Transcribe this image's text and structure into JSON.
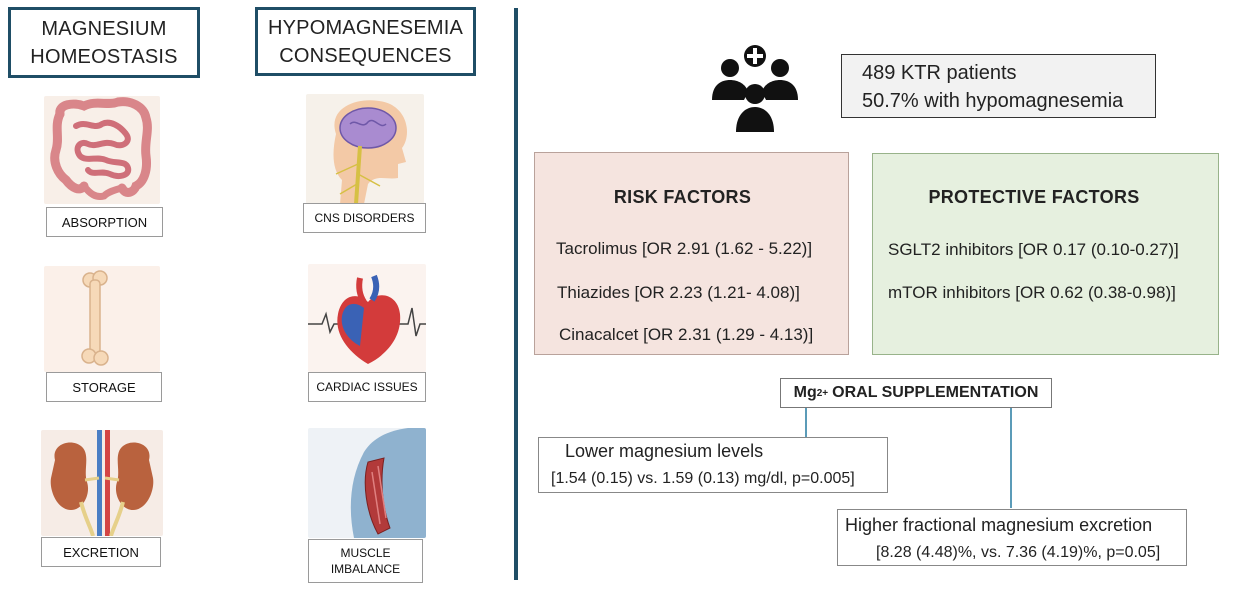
{
  "left": {
    "homeostasis_header": [
      "MAGNESIUM",
      "HOMEOSTASIS"
    ],
    "homeostasis_items": [
      {
        "label": "ABSORPTION",
        "icon": "intestine-icon"
      },
      {
        "label": "STORAGE",
        "icon": "bone-icon"
      },
      {
        "label": "EXCRETION",
        "icon": "kidney-icon"
      }
    ],
    "consequences_header": [
      "HYPOMAGNESEMIA",
      "CONSEQUENCES"
    ],
    "consequence_items": [
      {
        "label": "CNS DISORDERS",
        "icon": "brain-icon"
      },
      {
        "label": "CARDIAC ISSUES",
        "icon": "heart-icon"
      },
      {
        "label_lines": [
          "MUSCLE",
          "IMBALANCE"
        ],
        "icon": "muscle-icon"
      }
    ]
  },
  "right": {
    "patients_icon": "patient-group-icon",
    "patients": [
      "489 KTR patients",
      "50.7% with hypomagnesemia"
    ],
    "risk": {
      "title": "RISK FACTORS",
      "items": [
        "Tacrolimus [OR 2.91 (1.62 - 5.22)]",
        "Thiazides [OR 2.23 (1.21- 4.08)]",
        "Cinacalcet [OR 2.31 (1.29 - 4.13)]"
      ]
    },
    "protective": {
      "title": "PROTECTIVE FACTORS",
      "items": [
        "SGLT2 inhibitors [OR 0.17 (0.10-0.27)]",
        "mTOR inhibitors [OR 0.62 (0.38-0.98)]"
      ]
    },
    "supplement": {
      "mg": "Mg",
      "charge": "2+",
      "label": "ORAL SUPPLEMENTATION"
    },
    "result_low": {
      "line1": "Lower magnesium levels",
      "line2": "[1.54 (0.15) vs. 1.59 (0.13) mg/dl, p=0.005]"
    },
    "result_high": {
      "line1": "Higher fractional magnesium excretion",
      "line2": "[8.28 (4.48)%, vs. 7.36 (4.19)%, p=0.05]"
    }
  },
  "colors": {
    "header_border": "#1f4e66",
    "risk_bg": "#f5e4df",
    "protective_bg": "#e6f0df",
    "connector": "#5b9bb8"
  }
}
